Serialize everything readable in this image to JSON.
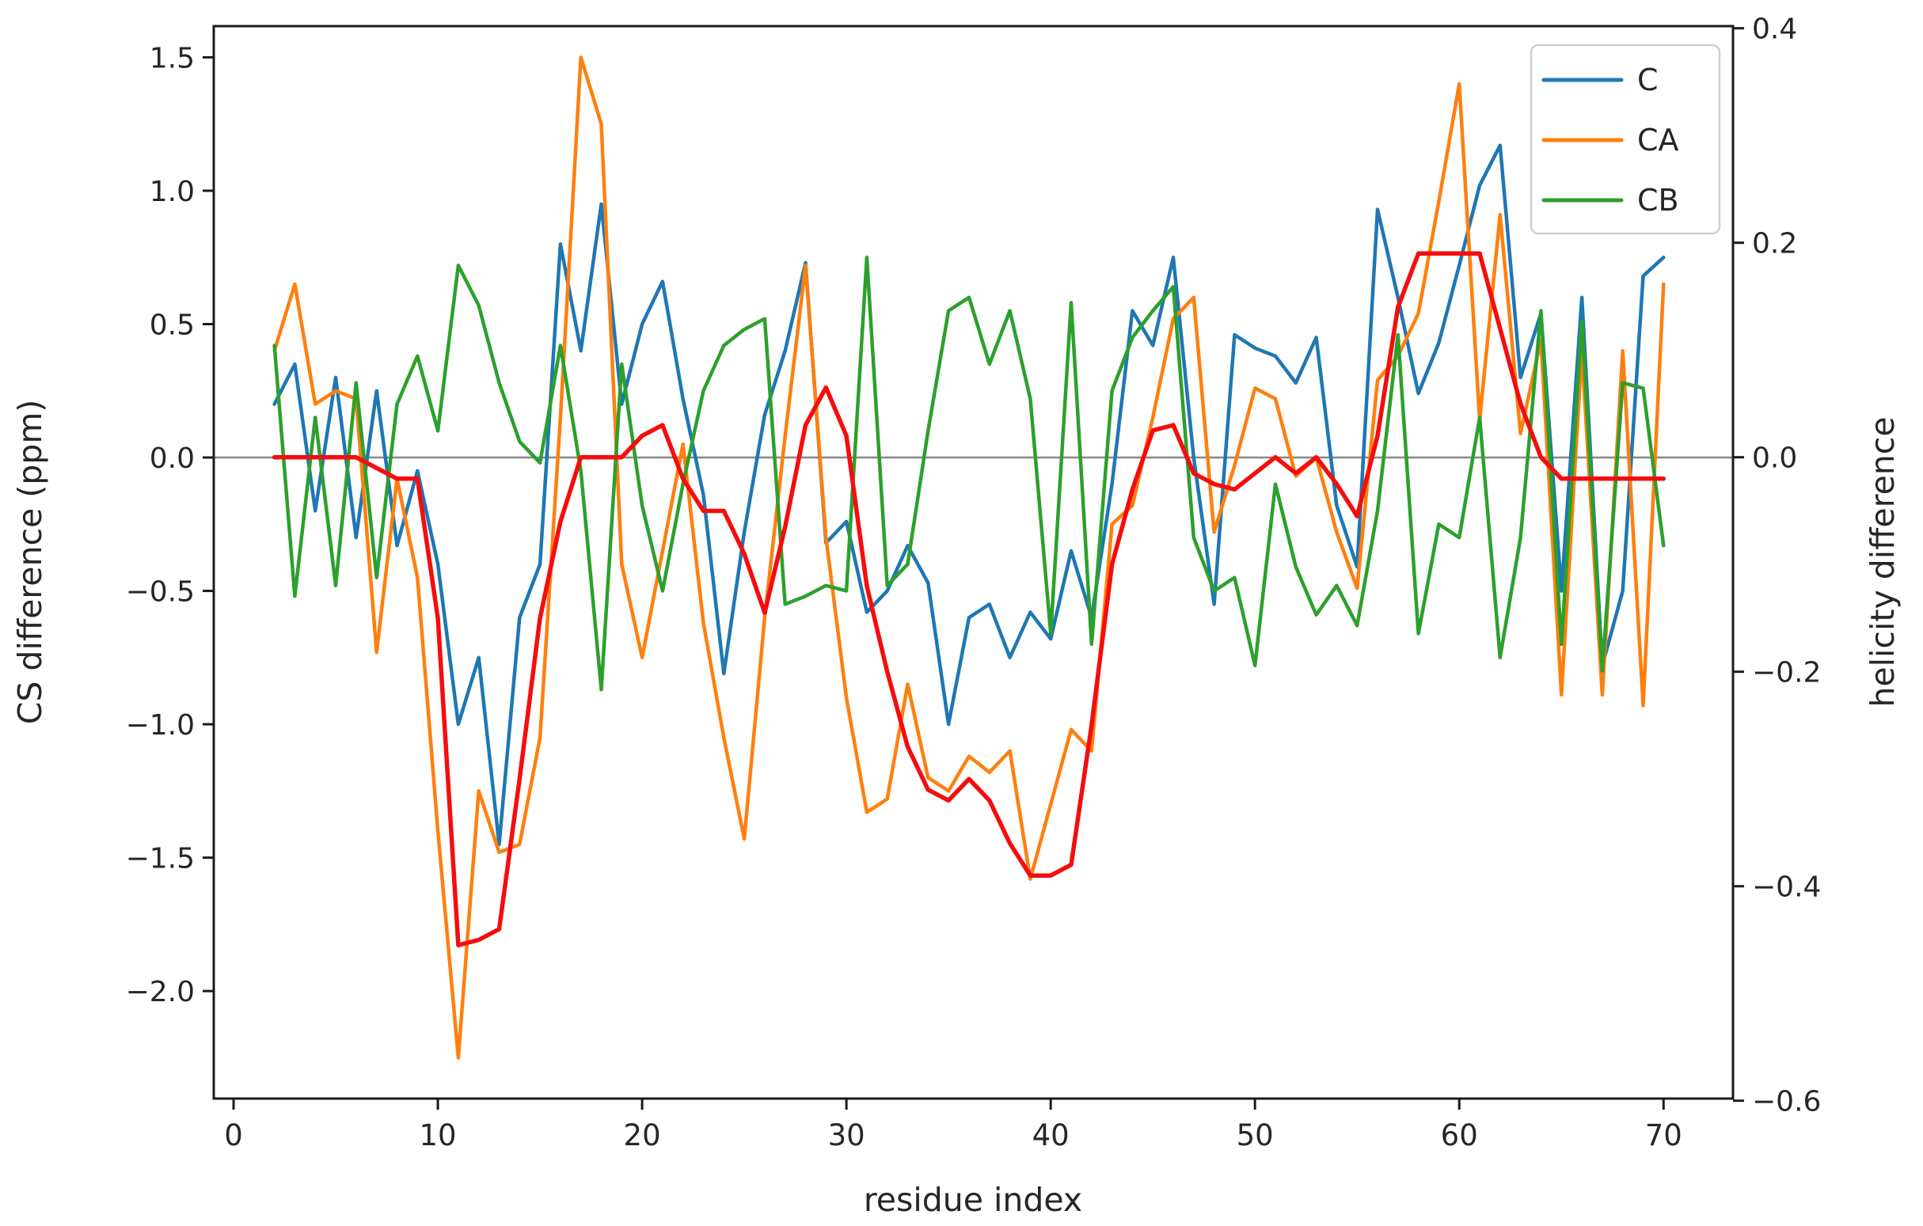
{
  "figure": {
    "background": "#ffffff",
    "spine_color": "#1b1b1b",
    "text_color": "#262626"
  },
  "chart_data": {
    "type": "line",
    "title": "",
    "xlabel": "residue index",
    "ylabel_left": "CS difference (ppm)",
    "ylabel_right": "helicity difference",
    "grid": false,
    "zero_line": true,
    "zero_line_color": "#888888",
    "x_start": 2,
    "x_ticks": [
      0,
      10,
      20,
      30,
      40,
      50,
      60,
      70
    ],
    "y_ticks_left": [
      1.5,
      1.0,
      0.5,
      0.0,
      -0.5,
      -1.0,
      -1.5,
      -2.0
    ],
    "y_ticks_right": [
      0.4,
      0.2,
      0.0,
      -0.2,
      -0.4,
      -0.6
    ],
    "xlim": [
      -0.97,
      73.4
    ],
    "ylim_left": [
      -2.403,
      1.617
    ],
    "ylim_right": [
      -0.598,
      0.402
    ],
    "legend": {
      "position": "upper right",
      "entries": [
        {
          "label": "C",
          "color": "#1f77b4"
        },
        {
          "label": "CA",
          "color": "#ff7f0e"
        },
        {
          "label": "CB",
          "color": "#2ca02c"
        }
      ]
    },
    "series": [
      {
        "name": "C",
        "axis": "left",
        "color": "#1f77b4",
        "width": 4.5,
        "in_legend": true,
        "values": [
          0.2,
          0.35,
          -0.2,
          0.3,
          -0.3,
          0.25,
          -0.33,
          -0.05,
          -0.4,
          -1.0,
          -0.75,
          -1.45,
          -0.6,
          -0.4,
          0.8,
          0.4,
          0.95,
          0.2,
          0.5,
          0.66,
          0.22,
          -0.14,
          -0.81,
          -0.28,
          0.16,
          0.4,
          0.73,
          -0.32,
          -0.24,
          -0.58,
          -0.5,
          -0.33,
          -0.47,
          -1.0,
          -0.6,
          -0.55,
          -0.75,
          -0.58,
          -0.68,
          -0.35,
          -0.6,
          -0.1,
          0.55,
          0.42,
          0.75,
          0.0,
          -0.55,
          0.46,
          0.41,
          0.38,
          0.28,
          0.45,
          -0.18,
          -0.41,
          0.93,
          0.6,
          0.24,
          0.43,
          0.72,
          1.02,
          1.17,
          0.3,
          0.54,
          -0.5,
          0.6,
          -0.78,
          -0.5,
          0.68,
          0.75
        ]
      },
      {
        "name": "CA",
        "axis": "left",
        "color": "#ff7f0e",
        "width": 4.5,
        "in_legend": true,
        "values": [
          0.4,
          0.65,
          0.2,
          0.25,
          0.22,
          -0.73,
          -0.08,
          -0.45,
          -1.4,
          -2.25,
          -1.25,
          -1.48,
          -1.45,
          -1.05,
          0.15,
          1.5,
          1.25,
          -0.4,
          -0.75,
          -0.35,
          0.05,
          -0.62,
          -1.05,
          -1.43,
          -0.6,
          0.08,
          0.72,
          -0.3,
          -0.9,
          -1.33,
          -1.28,
          -0.85,
          -1.2,
          -1.25,
          -1.12,
          -1.18,
          -1.1,
          -1.58,
          -1.3,
          -1.02,
          -1.1,
          -0.25,
          -0.18,
          0.15,
          0.52,
          0.6,
          -0.28,
          -0.03,
          0.26,
          0.22,
          -0.07,
          0.0,
          -0.28,
          -0.49,
          0.29,
          0.38,
          0.54,
          0.96,
          1.4,
          0.14,
          0.91,
          0.09,
          0.44,
          -0.89,
          0.4,
          -0.89,
          0.4,
          -0.93,
          0.65
        ]
      },
      {
        "name": "CB",
        "axis": "left",
        "color": "#2ca02c",
        "width": 4.5,
        "in_legend": true,
        "values": [
          0.42,
          -0.52,
          0.15,
          -0.48,
          0.28,
          -0.45,
          0.2,
          0.38,
          0.1,
          0.72,
          0.57,
          0.28,
          0.06,
          -0.02,
          0.42,
          -0.05,
          -0.87,
          0.35,
          -0.18,
          -0.5,
          -0.1,
          0.25,
          0.42,
          0.48,
          0.52,
          -0.55,
          -0.52,
          -0.48,
          -0.5,
          0.75,
          -0.48,
          -0.4,
          0.1,
          0.55,
          0.6,
          0.35,
          0.55,
          0.22,
          -0.66,
          0.58,
          -0.7,
          0.25,
          0.45,
          0.55,
          0.64,
          -0.3,
          -0.5,
          -0.45,
          -0.78,
          -0.1,
          -0.41,
          -0.59,
          -0.48,
          -0.63,
          -0.2,
          0.46,
          -0.66,
          -0.25,
          -0.3,
          0.15,
          -0.75,
          -0.3,
          0.55,
          -0.7,
          0.51,
          -0.8,
          0.28,
          0.26,
          -0.33
        ]
      },
      {
        "name": "helicity",
        "axis": "right",
        "color": "#f50d0d",
        "width": 5.5,
        "in_legend": false,
        "values": [
          0.0,
          0.0,
          0.0,
          0.0,
          0.0,
          -0.01,
          -0.02,
          -0.02,
          -0.15,
          -0.455,
          -0.45,
          -0.44,
          -0.3,
          -0.15,
          -0.06,
          0.0,
          0.0,
          0.0,
          0.02,
          0.03,
          -0.02,
          -0.05,
          -0.05,
          -0.09,
          -0.145,
          -0.065,
          0.03,
          0.065,
          0.02,
          -0.12,
          -0.2,
          -0.27,
          -0.31,
          -0.32,
          -0.3,
          -0.32,
          -0.36,
          -0.39,
          -0.39,
          -0.38,
          -0.25,
          -0.1,
          -0.03,
          0.025,
          0.03,
          -0.015,
          -0.025,
          -0.03,
          -0.015,
          0.0,
          -0.015,
          0.0,
          -0.025,
          -0.055,
          0.02,
          0.14,
          0.19,
          0.19,
          0.19,
          0.19,
          0.12,
          0.05,
          0.0,
          -0.02,
          -0.02,
          -0.02,
          -0.02,
          -0.02,
          -0.02
        ]
      }
    ]
  }
}
